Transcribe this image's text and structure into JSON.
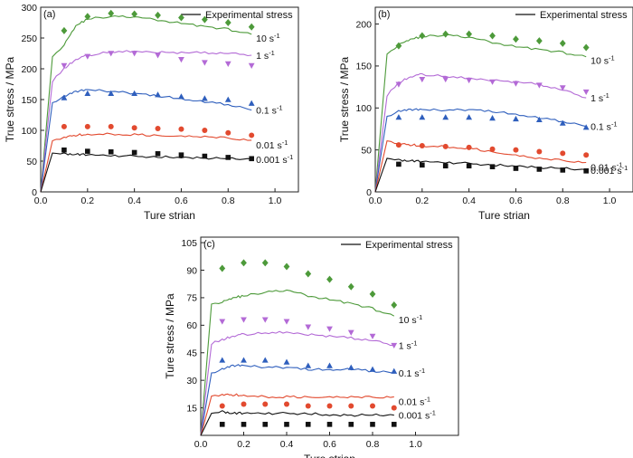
{
  "figure": {
    "legend_label": "Experimental stress",
    "colors": {
      "10": "#4d9a3a",
      "1": "#b36ad6",
      "0.1": "#2f5fbd",
      "0.01": "#e24a2f",
      "0.001": "#111111"
    }
  },
  "chart_data": [
    {
      "type": "line",
      "panel": "(a)",
      "xlabel": "Ture strian",
      "ylabel": "True stress / MPa",
      "xlim": [
        0,
        1.1
      ],
      "ylim": [
        0,
        300
      ],
      "xticks": [
        "0.0",
        "0.2",
        "0.4",
        "0.6",
        "0.8",
        "1.0"
      ],
      "yticks": [
        "0",
        "50",
        "100",
        "150",
        "200",
        "250",
        "300"
      ],
      "legend": "top-right",
      "series": [
        {
          "rate": "10",
          "name": "10 s",
          "marker": "diamond",
          "x": [
            0.1,
            0.2,
            0.3,
            0.4,
            0.5,
            0.6,
            0.7,
            0.8,
            0.9
          ],
          "experimental": [
            262,
            285,
            290,
            289,
            287,
            283,
            280,
            275,
            268
          ],
          "curve_x": [
            0,
            0.05,
            0.1,
            0.15,
            0.2,
            0.3,
            0.4,
            0.5,
            0.6,
            0.7,
            0.8,
            0.9
          ],
          "curve_y": [
            0,
            218,
            240,
            270,
            281,
            285,
            284,
            279,
            274,
            269,
            264,
            256
          ]
        },
        {
          "rate": "1",
          "name": "1 s",
          "marker": "triangle-down",
          "x": [
            0.1,
            0.2,
            0.3,
            0.4,
            0.5,
            0.6,
            0.7,
            0.8,
            0.9
          ],
          "experimental": [
            205,
            220,
            225,
            225,
            222,
            215,
            210,
            208,
            205
          ],
          "curve_x": [
            0,
            0.05,
            0.1,
            0.15,
            0.2,
            0.3,
            0.4,
            0.5,
            0.6,
            0.7,
            0.8,
            0.9
          ],
          "curve_y": [
            0,
            180,
            200,
            215,
            222,
            228,
            228,
            227,
            226,
            226,
            226,
            222
          ]
        },
        {
          "rate": "0.1",
          "name": "0.1 s",
          "marker": "triangle-up",
          "x": [
            0.1,
            0.2,
            0.3,
            0.4,
            0.5,
            0.6,
            0.7,
            0.8,
            0.9
          ],
          "experimental": [
            153,
            160,
            160,
            160,
            158,
            155,
            152,
            150,
            144
          ],
          "curve_x": [
            0,
            0.05,
            0.1,
            0.15,
            0.2,
            0.3,
            0.4,
            0.5,
            0.6,
            0.7,
            0.8,
            0.9
          ],
          "curve_y": [
            0,
            145,
            155,
            163,
            166,
            163,
            160,
            156,
            152,
            146,
            142,
            133
          ]
        },
        {
          "rate": "0.01",
          "name": "0.01 s",
          "marker": "circle",
          "x": [
            0.1,
            0.2,
            0.3,
            0.4,
            0.5,
            0.6,
            0.7,
            0.8,
            0.9
          ],
          "experimental": [
            106,
            106,
            106,
            104,
            103,
            102,
            100,
            96,
            92
          ],
          "curve_x": [
            0,
            0.05,
            0.1,
            0.15,
            0.2,
            0.3,
            0.4,
            0.5,
            0.6,
            0.7,
            0.8,
            0.9
          ],
          "curve_y": [
            0,
            82,
            88,
            92,
            94,
            94,
            93,
            92,
            91,
            90,
            88,
            84
          ]
        },
        {
          "rate": "0.001",
          "name": "0.001 s",
          "marker": "square",
          "x": [
            0.1,
            0.2,
            0.3,
            0.4,
            0.5,
            0.6,
            0.7,
            0.8,
            0.9
          ],
          "experimental": [
            68,
            66,
            65,
            64,
            62,
            60,
            58,
            56,
            54
          ],
          "curve_x": [
            0,
            0.05,
            0.1,
            0.15,
            0.2,
            0.3,
            0.4,
            0.5,
            0.6,
            0.7,
            0.8,
            0.9
          ],
          "curve_y": [
            0,
            63,
            62,
            61,
            60,
            59,
            58,
            57,
            56,
            55,
            54,
            53
          ]
        }
      ]
    },
    {
      "type": "line",
      "panel": "(b)",
      "xlabel": "Ture strian",
      "ylabel": "True stress / MPa",
      "xlim": [
        0,
        1.1
      ],
      "ylim": [
        0,
        220
      ],
      "xticks": [
        "0.0",
        "0.2",
        "0.4",
        "0.6",
        "0.8",
        "1.0"
      ],
      "yticks": [
        "0",
        "50",
        "100",
        "150",
        "200"
      ],
      "legend": "top-right",
      "series": [
        {
          "rate": "10",
          "name": "10 s",
          "marker": "diamond",
          "x": [
            0.1,
            0.2,
            0.3,
            0.4,
            0.5,
            0.6,
            0.7,
            0.8,
            0.9
          ],
          "experimental": [
            174,
            186,
            188,
            188,
            186,
            182,
            180,
            177,
            172
          ],
          "curve_x": [
            0,
            0.05,
            0.1,
            0.15,
            0.2,
            0.3,
            0.4,
            0.5,
            0.6,
            0.7,
            0.8,
            0.9
          ],
          "curve_y": [
            0,
            163,
            176,
            182,
            185,
            187,
            184,
            178,
            173,
            170,
            166,
            161
          ]
        },
        {
          "rate": "1",
          "name": "1 s",
          "marker": "triangle-down",
          "x": [
            0.1,
            0.2,
            0.3,
            0.4,
            0.5,
            0.6,
            0.7,
            0.8,
            0.9
          ],
          "experimental": [
            128,
            134,
            134,
            133,
            131,
            129,
            127,
            124,
            119
          ],
          "curve_x": [
            0,
            0.05,
            0.1,
            0.15,
            0.2,
            0.3,
            0.4,
            0.5,
            0.6,
            0.7,
            0.8,
            0.9
          ],
          "curve_y": [
            0,
            115,
            130,
            137,
            140,
            138,
            135,
            133,
            131,
            128,
            122,
            112
          ]
        },
        {
          "rate": "0.1",
          "name": "0.1 s",
          "marker": "triangle-up",
          "x": [
            0.1,
            0.2,
            0.3,
            0.4,
            0.5,
            0.6,
            0.7,
            0.8,
            0.9
          ],
          "experimental": [
            89,
            89,
            89,
            89,
            88,
            87,
            86,
            82,
            77
          ],
          "curve_x": [
            0,
            0.05,
            0.1,
            0.15,
            0.2,
            0.3,
            0.4,
            0.5,
            0.6,
            0.7,
            0.8,
            0.9
          ],
          "curve_y": [
            0,
            90,
            96,
            98,
            98,
            97,
            98,
            96,
            93,
            88,
            84,
            78
          ]
        },
        {
          "rate": "0.01",
          "name": "0.01 s",
          "marker": "circle",
          "x": [
            0.1,
            0.2,
            0.3,
            0.4,
            0.5,
            0.6,
            0.7,
            0.8,
            0.9
          ],
          "experimental": [
            56,
            55,
            54,
            53,
            51,
            50,
            48,
            46,
            44
          ],
          "curve_x": [
            0,
            0.05,
            0.1,
            0.15,
            0.2,
            0.3,
            0.4,
            0.5,
            0.6,
            0.7,
            0.8,
            0.9
          ],
          "curve_y": [
            0,
            60,
            57,
            56,
            55,
            54,
            52,
            48,
            44,
            40,
            38,
            35
          ]
        },
        {
          "rate": "0.001",
          "name": "0.001 s",
          "marker": "square",
          "x": [
            0.1,
            0.2,
            0.3,
            0.4,
            0.5,
            0.6,
            0.7,
            0.8,
            0.9
          ],
          "experimental": [
            33,
            32,
            31,
            31,
            30,
            28,
            27,
            26,
            25
          ],
          "curve_x": [
            0,
            0.05,
            0.1,
            0.15,
            0.2,
            0.3,
            0.4,
            0.5,
            0.6,
            0.7,
            0.8,
            0.9
          ],
          "curve_y": [
            0,
            40,
            38,
            37,
            36,
            35,
            34,
            32,
            31,
            29,
            28,
            26
          ]
        }
      ]
    },
    {
      "type": "line",
      "panel": "(c)",
      "xlabel": "Ture strian",
      "ylabel": "Ture stress / MPa",
      "xlim": [
        0,
        1.2
      ],
      "ylim": [
        0,
        108
      ],
      "xticks": [
        "0.0",
        "0.2",
        "0.4",
        "0.6",
        "0.8",
        "1.0"
      ],
      "yticks": [
        "15",
        "30",
        "45",
        "60",
        "75",
        "90",
        "105"
      ],
      "legend": "top-right",
      "series": [
        {
          "rate": "10",
          "name": "10 s",
          "marker": "diamond",
          "x": [
            0.1,
            0.2,
            0.3,
            0.4,
            0.5,
            0.6,
            0.7,
            0.8,
            0.9
          ],
          "experimental": [
            91,
            94,
            94,
            92,
            88,
            85,
            81,
            77,
            71
          ],
          "curve_x": [
            0,
            0.05,
            0.1,
            0.15,
            0.2,
            0.3,
            0.4,
            0.5,
            0.6,
            0.7,
            0.8,
            0.9
          ],
          "curve_y": [
            0,
            71,
            73,
            75,
            76,
            78,
            79,
            76,
            74,
            72,
            69,
            65
          ]
        },
        {
          "rate": "1",
          "name": "1 s",
          "marker": "triangle-down",
          "x": [
            0.1,
            0.2,
            0.3,
            0.4,
            0.5,
            0.6,
            0.7,
            0.8,
            0.9
          ],
          "experimental": [
            62,
            63,
            63,
            62,
            59,
            58,
            56,
            54,
            49
          ],
          "curve_x": [
            0,
            0.05,
            0.1,
            0.15,
            0.2,
            0.3,
            0.4,
            0.5,
            0.6,
            0.7,
            0.8,
            0.9
          ],
          "curve_y": [
            0,
            50,
            52,
            54,
            55,
            56,
            56,
            55,
            54,
            53,
            52,
            49
          ]
        },
        {
          "rate": "0.1",
          "name": "0.1 s",
          "marker": "triangle-up",
          "x": [
            0.1,
            0.2,
            0.3,
            0.4,
            0.5,
            0.6,
            0.7,
            0.8,
            0.9
          ],
          "experimental": [
            41,
            41,
            41,
            40,
            38,
            38,
            37,
            36,
            35
          ],
          "curve_x": [
            0,
            0.05,
            0.1,
            0.15,
            0.2,
            0.3,
            0.4,
            0.5,
            0.6,
            0.7,
            0.8,
            0.9
          ],
          "curve_y": [
            0,
            34,
            36,
            38,
            38,
            37,
            37,
            36,
            36,
            36,
            35,
            34
          ]
        },
        {
          "rate": "0.01",
          "name": "0.01 s",
          "marker": "circle",
          "x": [
            0.1,
            0.2,
            0.3,
            0.4,
            0.5,
            0.6,
            0.7,
            0.8,
            0.9
          ],
          "experimental": [
            16,
            17,
            17,
            17,
            16,
            16,
            16,
            16,
            15
          ],
          "curve_x": [
            0,
            0.05,
            0.1,
            0.15,
            0.2,
            0.3,
            0.4,
            0.5,
            0.6,
            0.7,
            0.8,
            0.9
          ],
          "curve_y": [
            0,
            21,
            22,
            22,
            22,
            21,
            21,
            21,
            21,
            21,
            21,
            21
          ]
        },
        {
          "rate": "0.001",
          "name": "0.001 s",
          "marker": "square",
          "x": [
            0.1,
            0.2,
            0.3,
            0.4,
            0.5,
            0.6,
            0.7,
            0.8,
            0.9
          ],
          "experimental": [
            6,
            6,
            6,
            6,
            6,
            6,
            6,
            6,
            6
          ],
          "curve_x": [
            0,
            0.05,
            0.1,
            0.15,
            0.2,
            0.3,
            0.4,
            0.5,
            0.6,
            0.7,
            0.8,
            0.9
          ],
          "curve_y": [
            0,
            12,
            13,
            12,
            12,
            12,
            12,
            12,
            11,
            11,
            11,
            11
          ]
        }
      ]
    }
  ]
}
